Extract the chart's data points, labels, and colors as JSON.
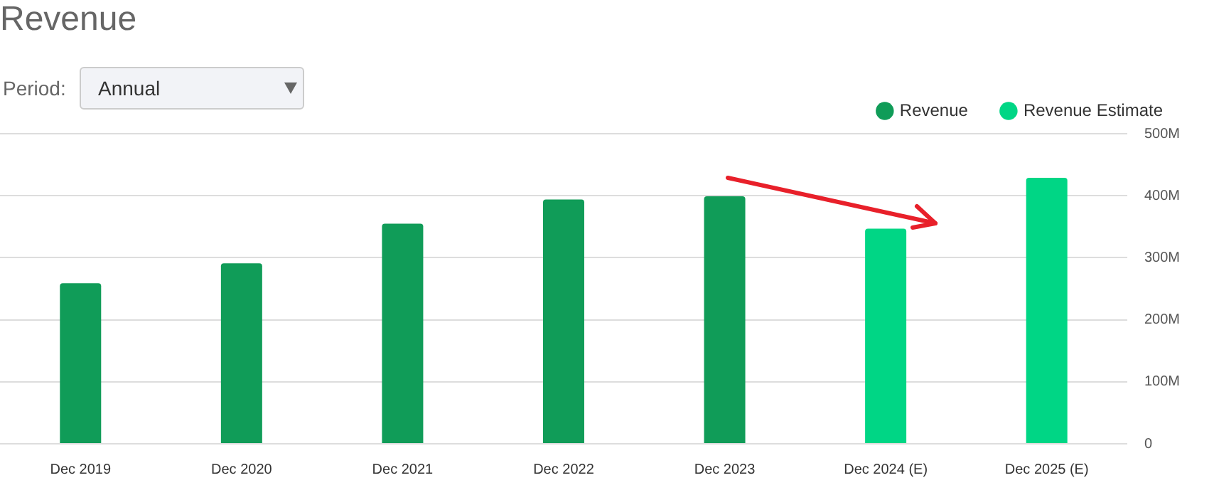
{
  "chart_data": {
    "type": "bar",
    "title": "Revenue",
    "annotations": [
      "Period:",
      "Annual"
    ],
    "categories": [
      "Dec 2019",
      "Dec 2020",
      "Dec 2021",
      "Dec 2022",
      "Dec 2023",
      "Dec 2024 (E)",
      "Dec 2025 (E)"
    ],
    "series": [
      {
        "name": "Revenue",
        "color": "#109c58",
        "values": [
          259,
          291,
          355,
          394,
          399,
          null,
          null
        ]
      },
      {
        "name": "Revenue Estimate",
        "color": "#00d685",
        "values": [
          null,
          null,
          null,
          null,
          null,
          347,
          429
        ]
      }
    ],
    "ylim": [
      0,
      500
    ],
    "yticks": [
      0,
      {
        "value": 100,
        "label": "100M"
      },
      {
        "value": 200,
        "label": "200M"
      },
      {
        "value": 300,
        "label": "300M"
      },
      {
        "value": 400,
        "label": "400M"
      },
      {
        "value": 500,
        "label": "500M"
      }
    ],
    "grid": "y",
    "legend": "top right"
  }
}
